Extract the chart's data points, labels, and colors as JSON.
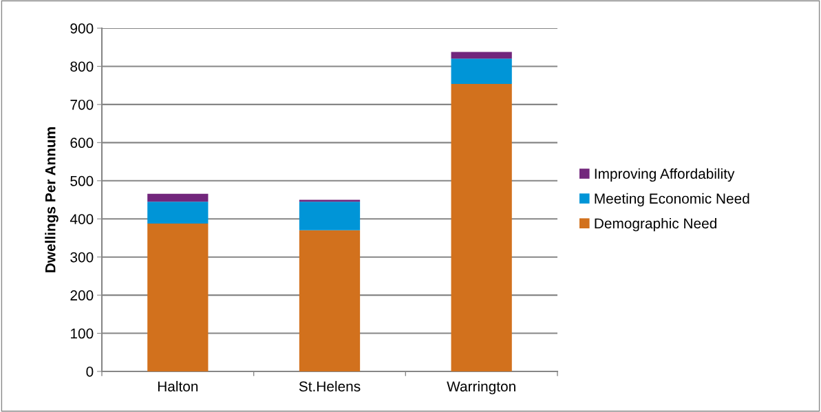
{
  "chart_data": {
    "type": "bar",
    "stacked": true,
    "ylabel": "Dwellings Per Annum",
    "categories": [
      "Halton",
      "St.Helens",
      "Warrington"
    ],
    "series": [
      {
        "name": "Demographic Need",
        "color": "#d2711d",
        "values": [
          388,
          370,
          754
        ]
      },
      {
        "name": "Meeting Economic Need",
        "color": "#0095d7",
        "values": [
          57,
          75,
          66
        ]
      },
      {
        "name": "Improving Affordability",
        "color": "#72267c",
        "values": [
          21,
          5,
          18
        ]
      }
    ],
    "ylim": [
      0,
      900
    ],
    "yticks": [
      0,
      100,
      200,
      300,
      400,
      500,
      600,
      700,
      800,
      900
    ],
    "grid": "y",
    "legend": "right"
  }
}
